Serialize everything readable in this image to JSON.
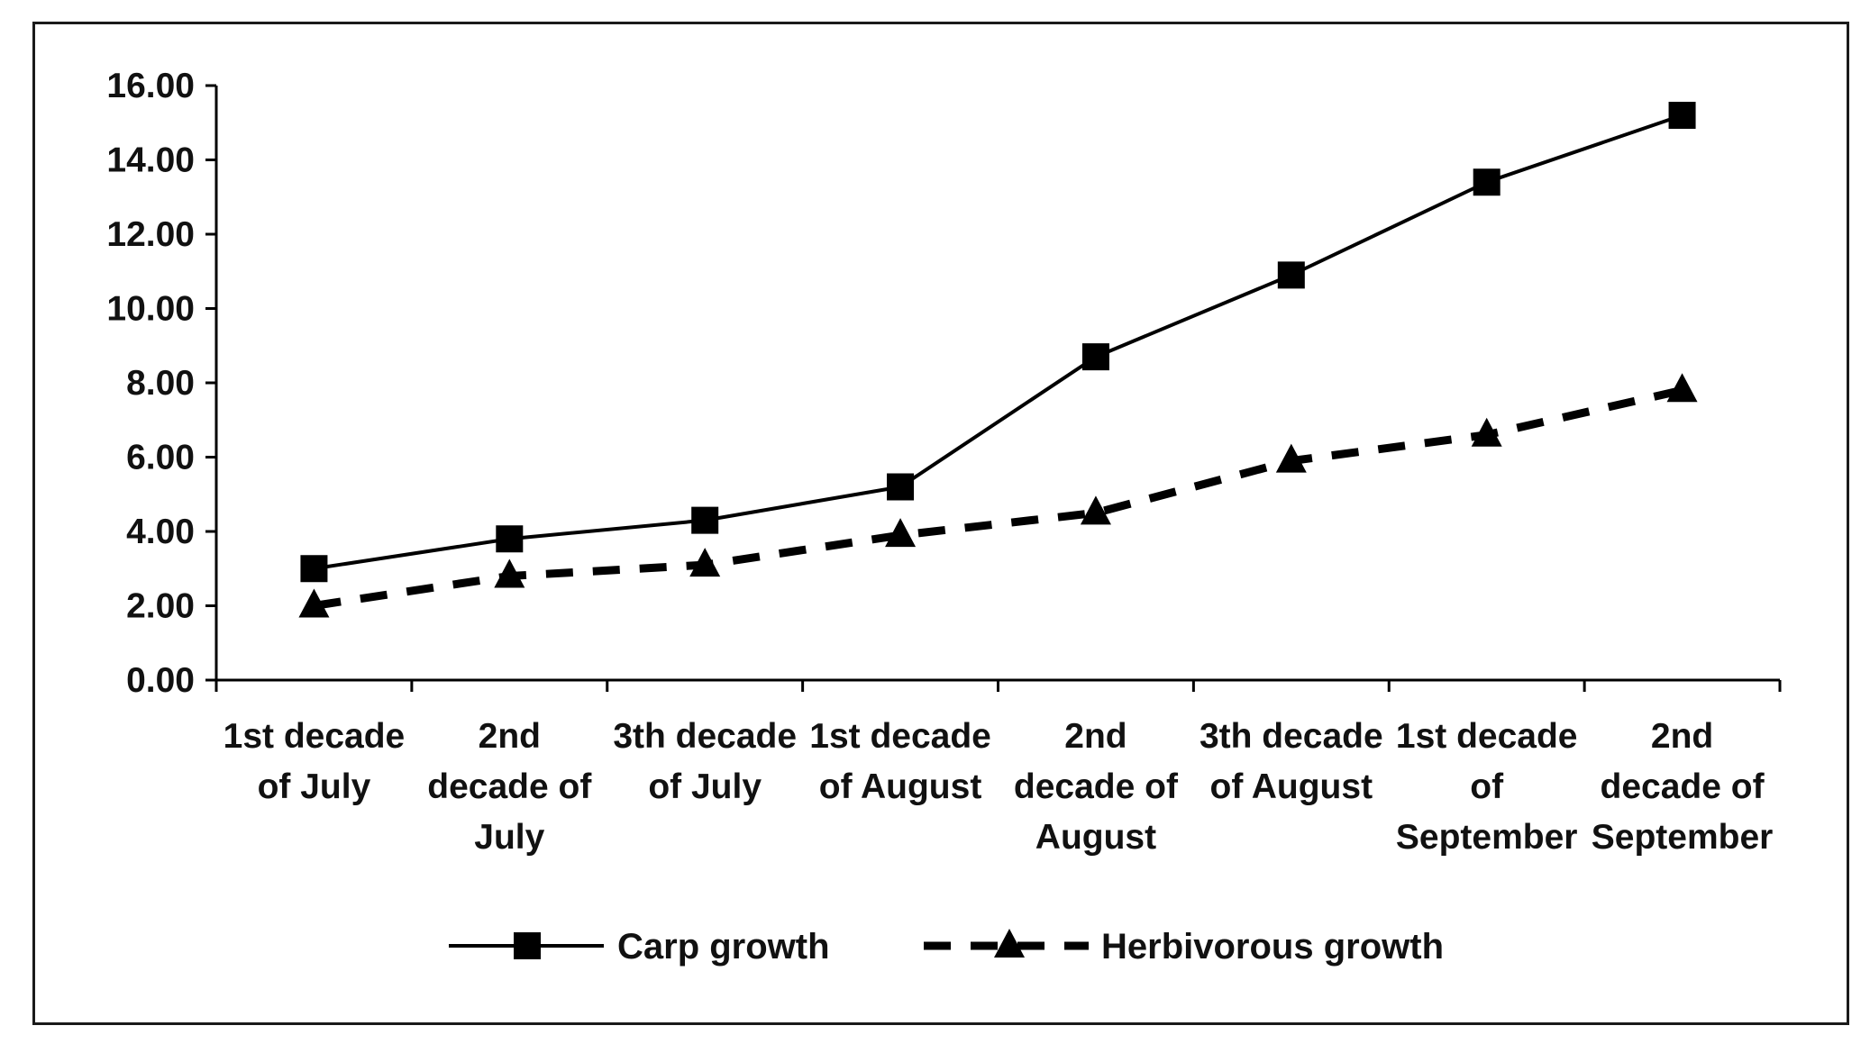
{
  "chart_data": {
    "type": "line",
    "categories": [
      [
        "1st decade",
        "of July"
      ],
      [
        "2nd",
        "decade of",
        "July"
      ],
      [
        "3th decade",
        "of July"
      ],
      [
        "1st decade",
        "of August"
      ],
      [
        "2nd",
        "decade of",
        "August"
      ],
      [
        "3th decade",
        "of August"
      ],
      [
        "1st decade",
        "of",
        "September"
      ],
      [
        "2nd",
        "decade of",
        "September"
      ]
    ],
    "series": [
      {
        "name": "Carp  growth",
        "values": [
          3.0,
          3.8,
          4.3,
          5.2,
          8.7,
          10.9,
          13.4,
          15.2
        ],
        "style": "solid",
        "marker": "square"
      },
      {
        "name": "Herbivorous growth",
        "values": [
          2.0,
          2.8,
          3.1,
          3.9,
          4.5,
          5.9,
          6.6,
          7.8
        ],
        "style": "dashed",
        "marker": "triangle"
      }
    ],
    "ylim": [
      0,
      16
    ],
    "yticks": [
      "0.00",
      "2.00",
      "4.00",
      "6.00",
      "8.00",
      "10.00",
      "12.00",
      "14.00",
      "16.00"
    ],
    "xlabel": "",
    "ylabel": "",
    "grid": false,
    "legend": "bottom",
    "colors": {
      "line": "#000000",
      "text": "#111111",
      "border": "#1a1a1a"
    }
  }
}
